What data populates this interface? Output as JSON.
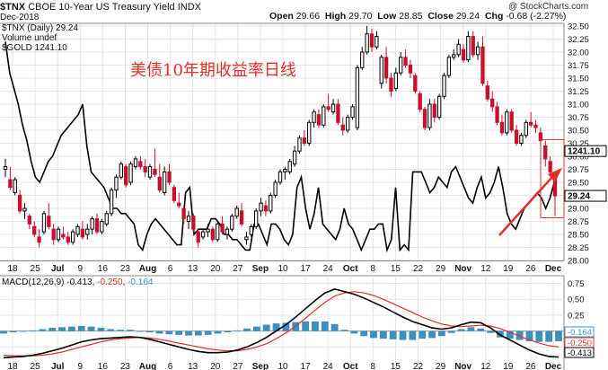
{
  "header": {
    "symbol": "$TNX",
    "name": "CBOE 10-Year US Treasury Yield",
    "exchange": "INDX",
    "date": "Dec-2018",
    "open_label": "Open",
    "open": "29.66",
    "high_label": "High",
    "high": "29.70",
    "low_label": "Low",
    "low": "28.85",
    "close_label": "Close",
    "close": "29.24",
    "chg_label": "Chg",
    "chg": "-0.68 (-2.27%)",
    "brand": "@ StockCharts.com"
  },
  "legend": {
    "tnx": "$TNX (Daily) 29.24",
    "volume": "Volume undef",
    "gold": "$GOLD 1241.10"
  },
  "annotation": "美债10年期收益率日线",
  "price_tag_gold": "1241.10",
  "price_tag_tnx": "29.24",
  "macd_label": {
    "prefix": "MACD(12,26,9) ",
    "macd": "-0.413",
    "signal": "-0.250",
    "hist": "-0.164"
  },
  "macd_tags": {
    "hist": "-0.164",
    "signal": "-0.250",
    "macd": "-0.413"
  },
  "x_axis": {
    "labels": [
      "18",
      "25",
      "Jul",
      "9",
      "16",
      "23",
      "Aug",
      "6",
      "13",
      "20",
      "27",
      "Sep",
      "10",
      "17",
      "24",
      "Oct",
      "8",
      "15",
      "22",
      "29",
      "Nov",
      "12",
      "19",
      "26",
      "Dec"
    ],
    "bold": [
      "Jul",
      "Aug",
      "Sep",
      "Oct",
      "Nov",
      "Dec"
    ]
  },
  "chart_data": [
    {
      "type": "candlestick",
      "title": "$TNX (Daily)",
      "ylim": [
        28.0,
        32.5
      ],
      "y_ticks": [
        "28.00",
        "28.25",
        "28.50",
        "28.75",
        "29.00",
        "29.25",
        "29.50",
        "29.75",
        "30.00",
        "30.25",
        "30.50",
        "30.75",
        "31.00",
        "31.25",
        "31.50",
        "31.75",
        "32.00",
        "32.25",
        "32.50"
      ],
      "colors": {
        "up": "#000000",
        "down": "#c8102e",
        "gold_line": "#000000",
        "annotation_arrow": "#e0302a"
      },
      "candles": [
        [
          29.75,
          29.95,
          29.6,
          29.8
        ],
        [
          29.55,
          29.8,
          29.35,
          29.4
        ],
        [
          29.3,
          29.6,
          29.25,
          29.55
        ],
        [
          29.25,
          29.35,
          28.9,
          28.95
        ],
        [
          28.95,
          29.1,
          28.8,
          29.0
        ],
        [
          28.85,
          28.9,
          28.6,
          28.7
        ],
        [
          28.65,
          28.75,
          28.45,
          28.5
        ],
        [
          28.45,
          28.6,
          28.25,
          28.35
        ],
        [
          28.55,
          28.95,
          28.5,
          28.9
        ],
        [
          28.85,
          29.1,
          28.6,
          28.65
        ],
        [
          28.6,
          28.7,
          28.3,
          28.4
        ],
        [
          28.4,
          28.65,
          28.35,
          28.6
        ],
        [
          28.5,
          28.65,
          28.4,
          28.45
        ],
        [
          28.45,
          28.55,
          28.3,
          28.35
        ],
        [
          28.35,
          28.6,
          28.3,
          28.55
        ],
        [
          28.5,
          28.7,
          28.45,
          28.65
        ],
        [
          28.6,
          28.75,
          28.4,
          28.45
        ],
        [
          28.5,
          28.7,
          28.4,
          28.6
        ],
        [
          28.6,
          28.85,
          28.5,
          28.8
        ],
        [
          28.8,
          28.9,
          28.5,
          28.55
        ],
        [
          28.55,
          28.8,
          28.5,
          28.75
        ],
        [
          28.7,
          28.95,
          28.65,
          28.9
        ],
        [
          28.9,
          29.4,
          28.85,
          29.35
        ],
        [
          29.35,
          29.65,
          29.2,
          29.6
        ],
        [
          29.6,
          29.9,
          29.55,
          29.85
        ],
        [
          29.8,
          29.85,
          29.4,
          29.45
        ],
        [
          29.5,
          29.9,
          29.45,
          29.85
        ],
        [
          29.8,
          30.0,
          29.75,
          29.95
        ],
        [
          29.9,
          30.0,
          29.75,
          29.8
        ],
        [
          29.8,
          29.95,
          29.6,
          29.7
        ],
        [
          29.6,
          29.85,
          29.55,
          29.8
        ],
        [
          29.75,
          30.15,
          29.6,
          29.65
        ],
        [
          29.6,
          29.85,
          29.3,
          29.35
        ],
        [
          29.3,
          29.8,
          29.25,
          29.7
        ],
        [
          29.7,
          29.85,
          29.45,
          29.5
        ],
        [
          29.4,
          29.45,
          29.1,
          29.15
        ],
        [
          29.1,
          29.3,
          29.0,
          29.05
        ],
        [
          29.0,
          29.05,
          28.7,
          28.8
        ],
        [
          28.75,
          28.95,
          28.6,
          28.85
        ],
        [
          28.85,
          28.9,
          28.55,
          28.6
        ],
        [
          28.55,
          28.6,
          28.25,
          28.35
        ],
        [
          28.45,
          28.6,
          28.4,
          28.55
        ],
        [
          28.55,
          28.7,
          28.45,
          28.6
        ],
        [
          28.6,
          28.65,
          28.35,
          28.4
        ],
        [
          28.4,
          28.75,
          28.35,
          28.7
        ],
        [
          28.7,
          28.85,
          28.5,
          28.55
        ],
        [
          28.5,
          28.65,
          28.4,
          28.6
        ],
        [
          28.6,
          28.9,
          28.55,
          28.85
        ],
        [
          28.85,
          29.05,
          28.8,
          29.0
        ],
        [
          28.95,
          29.1,
          28.65,
          28.7
        ],
        [
          28.4,
          28.55,
          28.3,
          28.45
        ],
        [
          28.5,
          28.7,
          28.45,
          28.65
        ],
        [
          28.65,
          29.0,
          28.6,
          28.95
        ],
        [
          28.95,
          29.2,
          28.85,
          29.1
        ],
        [
          29.05,
          29.15,
          28.85,
          28.95
        ],
        [
          28.95,
          29.3,
          28.9,
          29.25
        ],
        [
          29.25,
          29.55,
          29.2,
          29.5
        ],
        [
          29.5,
          29.75,
          29.45,
          29.7
        ],
        [
          29.7,
          29.8,
          29.55,
          29.75
        ],
        [
          29.7,
          29.95,
          29.65,
          29.9
        ],
        [
          29.85,
          30.2,
          29.8,
          30.1
        ],
        [
          30.1,
          30.4,
          30.05,
          30.35
        ],
        [
          30.35,
          30.5,
          30.2,
          30.25
        ],
        [
          30.25,
          30.7,
          30.2,
          30.65
        ],
        [
          30.65,
          30.9,
          30.55,
          30.85
        ],
        [
          30.8,
          30.9,
          30.55,
          30.6
        ],
        [
          30.6,
          31.0,
          30.55,
          30.95
        ],
        [
          30.95,
          31.2,
          30.85,
          30.9
        ],
        [
          30.85,
          31.1,
          30.8,
          31.0
        ],
        [
          31.0,
          31.1,
          30.6,
          30.65
        ],
        [
          30.6,
          30.75,
          30.4,
          30.5
        ],
        [
          30.5,
          30.8,
          30.45,
          30.75
        ],
        [
          30.75,
          31.0,
          30.7,
          30.95
        ],
        [
          30.55,
          31.75,
          30.5,
          31.7
        ],
        [
          31.7,
          32.1,
          31.65,
          32.0
        ],
        [
          32.0,
          32.5,
          31.95,
          32.35
        ],
        [
          32.35,
          32.45,
          32.0,
          32.1
        ],
        [
          32.1,
          32.4,
          32.05,
          32.3
        ],
        [
          31.4,
          31.95,
          31.3,
          31.9
        ],
        [
          31.9,
          32.1,
          31.4,
          31.5
        ],
        [
          31.5,
          31.6,
          31.15,
          31.25
        ],
        [
          31.3,
          31.7,
          31.25,
          31.6
        ],
        [
          31.6,
          32.0,
          31.55,
          31.9
        ],
        [
          31.9,
          32.05,
          31.7,
          31.75
        ],
        [
          31.75,
          31.85,
          31.5,
          31.6
        ],
        [
          31.55,
          31.6,
          31.2,
          31.25
        ],
        [
          31.2,
          31.25,
          30.85,
          30.9
        ],
        [
          30.9,
          30.95,
          30.5,
          30.55
        ],
        [
          30.55,
          31.1,
          30.5,
          31.0
        ],
        [
          31.0,
          31.1,
          30.65,
          30.75
        ],
        [
          30.75,
          31.2,
          30.7,
          31.15
        ],
        [
          31.15,
          31.6,
          31.1,
          31.55
        ],
        [
          31.55,
          31.95,
          31.5,
          31.9
        ],
        [
          31.9,
          32.05,
          31.85,
          31.95
        ],
        [
          31.95,
          32.25,
          31.9,
          32.15
        ],
        [
          32.05,
          32.15,
          31.8,
          31.85
        ],
        [
          31.85,
          32.4,
          31.8,
          32.3
        ],
        [
          32.3,
          32.4,
          31.9,
          31.95
        ],
        [
          31.95,
          32.2,
          31.85,
          32.1
        ],
        [
          32.1,
          32.3,
          31.35,
          31.4
        ],
        [
          31.35,
          31.45,
          31.05,
          31.1
        ],
        [
          31.1,
          31.25,
          30.85,
          30.95
        ],
        [
          30.95,
          31.05,
          30.6,
          30.65
        ],
        [
          30.65,
          30.8,
          30.4,
          30.45
        ],
        [
          30.45,
          30.9,
          30.4,
          30.85
        ],
        [
          30.85,
          30.9,
          30.45,
          30.5
        ],
        [
          30.5,
          30.6,
          30.2,
          30.25
        ],
        [
          30.25,
          30.45,
          30.2,
          30.4
        ],
        [
          30.4,
          30.7,
          30.35,
          30.65
        ],
        [
          30.65,
          30.85,
          30.55,
          30.6
        ],
        [
          30.6,
          30.7,
          30.45,
          30.55
        ],
        [
          30.45,
          30.55,
          30.2,
          30.3
        ],
        [
          30.2,
          30.3,
          29.8,
          29.95
        ],
        [
          29.9,
          30.0,
          29.65,
          29.7
        ],
        [
          29.66,
          29.7,
          28.85,
          29.24
        ]
      ],
      "gold_overlay": [
        32.2,
        31.6,
        31.3,
        31.0,
        30.6,
        30.3,
        29.9,
        29.6,
        29.5,
        29.7,
        29.9,
        30.0,
        30.2,
        30.4,
        30.5,
        30.6,
        30.7,
        30.8,
        31.0,
        30.2,
        29.7,
        29.6,
        29.5,
        29.4,
        29.2,
        29.0,
        29.0,
        28.9,
        28.9,
        28.8,
        28.7,
        28.3,
        28.2,
        28.5,
        28.7,
        28.8,
        28.7,
        28.6,
        28.5,
        28.4,
        28.3,
        28.3,
        29.3,
        29.4,
        28.5,
        28.6,
        28.6,
        28.6,
        28.8,
        28.8,
        28.7,
        28.5,
        28.5,
        28.4,
        28.4,
        28.3,
        28.2,
        28.2,
        28.7,
        28.7,
        28.5,
        28.3,
        28.7,
        28.7,
        28.6,
        28.4,
        28.3,
        28.5,
        29.4,
        29.6,
        29.0,
        28.6,
        28.9,
        29.4,
        28.7,
        28.6,
        28.5,
        28.4,
        28.6,
        29.0,
        28.7,
        28.6,
        28.4,
        28.2,
        28.4,
        28.6,
        28.6,
        28.7,
        28.7,
        28.2,
        28.4,
        29.4,
        28.2,
        28.3,
        28.2,
        29.7,
        29.7,
        29.7,
        29.5,
        29.3,
        29.4,
        29.6,
        29.5,
        29.4,
        29.7,
        29.8,
        29.6,
        29.4,
        29.2,
        29.1,
        29.4,
        29.6,
        29.2,
        29.3,
        29.5,
        29.8,
        29.4,
        28.9,
        28.7,
        28.6,
        28.8,
        29.0,
        29.1,
        29.2,
        29.3,
        29.2,
        29.0,
        29.2,
        29.5,
        29.7
      ]
    },
    {
      "type": "macd",
      "title": "MACD(12,26,9)",
      "ylim": [
        -0.5,
        0.8
      ],
      "y_ticks": [
        "0.75",
        "0.50",
        "0.25",
        "0.00",
        "-0.25"
      ],
      "colors": {
        "macd": "#000000",
        "signal": "#e0302a",
        "histogram": "#3d8fc0"
      },
      "macd": [
        -0.42,
        -0.41,
        -0.4,
        -0.38,
        -0.35,
        -0.31,
        -0.27,
        -0.22,
        -0.17,
        -0.14,
        -0.12,
        -0.11,
        -0.1,
        -0.09,
        -0.1,
        -0.13,
        -0.17,
        -0.21,
        -0.25,
        -0.29,
        -0.32,
        -0.34,
        -0.34,
        -0.33,
        -0.3,
        -0.25,
        -0.18,
        -0.1,
        0.0,
        0.1,
        0.22,
        0.35,
        0.48,
        0.6,
        0.66,
        0.62,
        0.58,
        0.52,
        0.45,
        0.38,
        0.3,
        0.22,
        0.15,
        0.1,
        0.05,
        0.03,
        0.05,
        0.1,
        0.14,
        0.13,
        0.05,
        -0.06,
        -0.14,
        -0.22,
        -0.3,
        -0.36,
        -0.4,
        -0.41
      ],
      "signal": [
        -0.38,
        -0.39,
        -0.39,
        -0.39,
        -0.38,
        -0.36,
        -0.33,
        -0.29,
        -0.25,
        -0.21,
        -0.17,
        -0.14,
        -0.12,
        -0.11,
        -0.1,
        -0.11,
        -0.13,
        -0.16,
        -0.19,
        -0.22,
        -0.25,
        -0.28,
        -0.3,
        -0.31,
        -0.31,
        -0.29,
        -0.25,
        -0.2,
        -0.12,
        -0.03,
        0.08,
        0.2,
        0.33,
        0.45,
        0.55,
        0.6,
        0.62,
        0.6,
        0.56,
        0.5,
        0.43,
        0.36,
        0.29,
        0.22,
        0.16,
        0.11,
        0.08,
        0.07,
        0.08,
        0.09,
        0.08,
        0.04,
        -0.02,
        -0.08,
        -0.14,
        -0.19,
        -0.23,
        -0.25
      ],
      "histogram": [
        -0.04,
        -0.02,
        -0.01,
        0.01,
        0.03,
        0.05,
        0.06,
        0.07,
        0.08,
        0.07,
        0.05,
        0.03,
        0.02,
        0.02,
        0.0,
        -0.02,
        -0.04,
        -0.05,
        -0.06,
        -0.07,
        -0.07,
        -0.06,
        -0.04,
        -0.02,
        0.01,
        0.04,
        0.07,
        0.1,
        0.12,
        0.13,
        0.14,
        0.15,
        0.15,
        0.15,
        0.11,
        0.02,
        -0.04,
        -0.08,
        -0.11,
        -0.12,
        -0.13,
        -0.14,
        -0.14,
        -0.12,
        -0.11,
        -0.08,
        -0.03,
        0.03,
        0.06,
        0.04,
        -0.03,
        -0.1,
        -0.12,
        -0.14,
        -0.16,
        -0.17,
        -0.17,
        -0.16
      ]
    }
  ]
}
